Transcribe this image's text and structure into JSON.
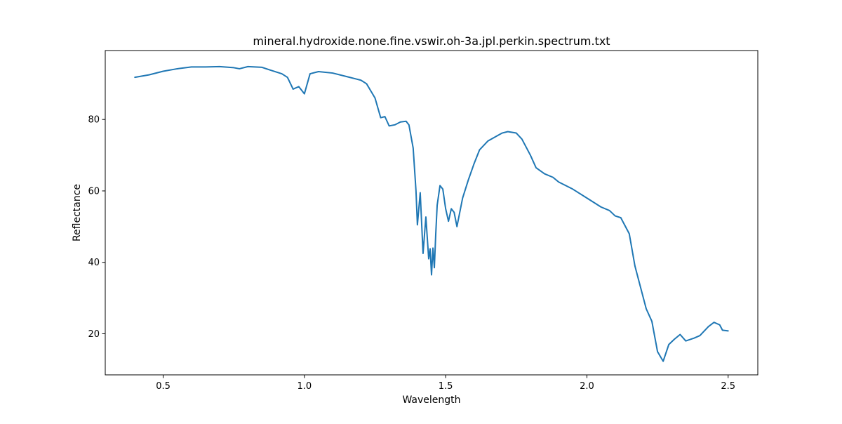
{
  "chart_data": {
    "type": "line",
    "title": "mineral.hydroxide.none.fine.vswir.oh-3a.jpl.perkin.spectrum.txt",
    "xlabel": "Wavelength",
    "ylabel": "Reflectance",
    "xlim": [
      0.295,
      2.605
    ],
    "ylim": [
      8.5,
      99.3
    ],
    "xticks": [
      0.5,
      1.0,
      1.5,
      2.0,
      2.5
    ],
    "xtick_labels": [
      "0.5",
      "1.0",
      "1.5",
      "2.0",
      "2.5"
    ],
    "yticks": [
      20,
      40,
      60,
      80
    ],
    "ytick_labels": [
      "20",
      "40",
      "60",
      "80"
    ],
    "grid": false,
    "line_color": "#1f77b4",
    "series": [
      {
        "x": [
          0.4,
          0.45,
          0.5,
          0.55,
          0.6,
          0.65,
          0.7,
          0.75,
          0.77,
          0.8,
          0.85,
          0.88,
          0.92,
          0.94,
          0.96,
          0.98,
          0.99,
          1.0,
          1.02,
          1.05,
          1.1,
          1.15,
          1.2,
          1.22,
          1.25,
          1.27,
          1.285,
          1.3,
          1.32,
          1.34,
          1.36,
          1.37,
          1.385,
          1.395,
          1.4,
          1.41,
          1.42,
          1.43,
          1.44,
          1.445,
          1.45,
          1.455,
          1.46,
          1.465,
          1.47,
          1.48,
          1.49,
          1.5,
          1.51,
          1.52,
          1.53,
          1.54,
          1.55,
          1.56,
          1.58,
          1.6,
          1.62,
          1.65,
          1.7,
          1.72,
          1.75,
          1.77,
          1.8,
          1.82,
          1.85,
          1.88,
          1.9,
          1.95,
          2.0,
          2.05,
          2.08,
          2.1,
          2.12,
          2.15,
          2.17,
          2.19,
          2.21,
          2.23,
          2.25,
          2.27,
          2.29,
          2.31,
          2.33,
          2.35,
          2.38,
          2.4,
          2.43,
          2.45,
          2.47,
          2.48,
          2.5
        ],
        "y": [
          91.8,
          92.5,
          93.5,
          94.2,
          94.7,
          94.7,
          94.8,
          94.5,
          94.2,
          94.8,
          94.6,
          93.8,
          92.8,
          91.8,
          88.5,
          89.2,
          88.2,
          87.2,
          92.8,
          93.4,
          93.0,
          92.0,
          91.0,
          90.0,
          86.0,
          80.5,
          80.8,
          78.2,
          78.5,
          79.3,
          79.5,
          78.5,
          72.0,
          60.0,
          50.5,
          59.5,
          42.5,
          52.7,
          41.0,
          43.8,
          36.5,
          44.0,
          38.5,
          48.0,
          56.0,
          61.5,
          60.5,
          55.0,
          51.5,
          55.0,
          54.0,
          50.0,
          54.0,
          58.0,
          63.0,
          67.5,
          71.5,
          74.0,
          76.2,
          76.6,
          76.2,
          74.5,
          70.0,
          66.5,
          64.8,
          63.8,
          62.5,
          60.5,
          58.0,
          55.5,
          54.5,
          53.0,
          52.5,
          48.0,
          39.0,
          33.0,
          27.0,
          23.5,
          15.0,
          12.3,
          17.0,
          18.5,
          19.8,
          18.0,
          18.8,
          19.5,
          22.0,
          23.2,
          22.5,
          21.0,
          20.8
        ]
      }
    ]
  }
}
